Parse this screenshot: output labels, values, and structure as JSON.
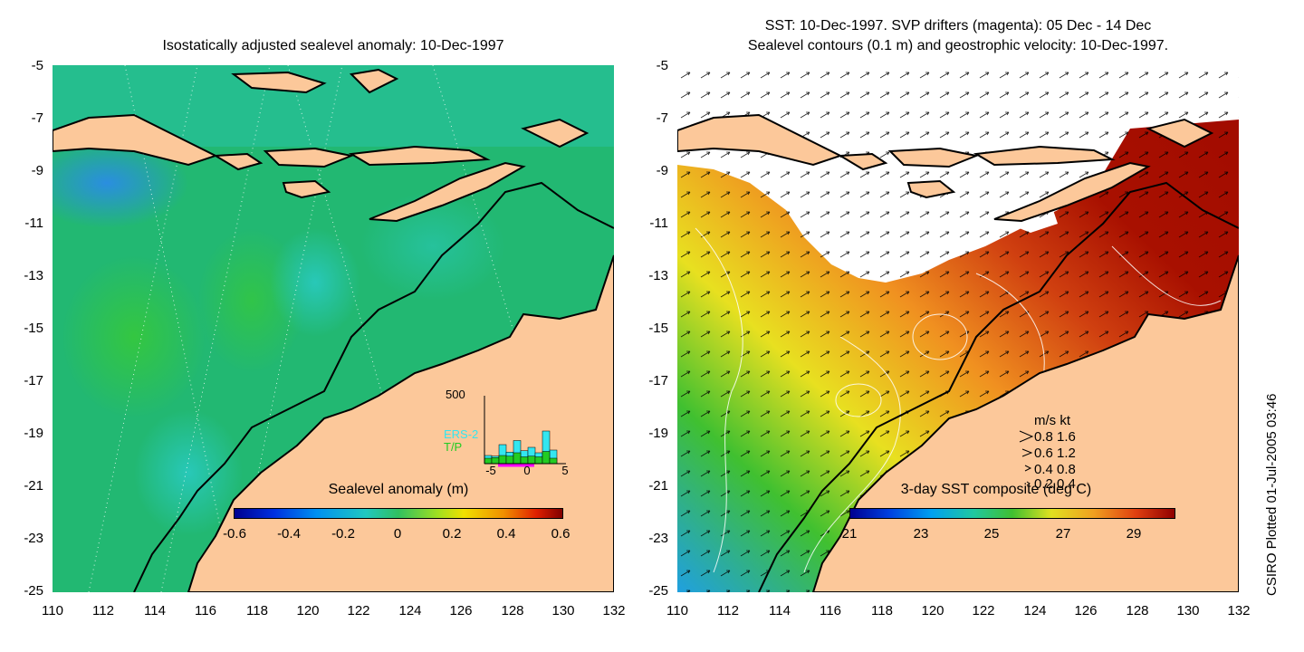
{
  "left_panel": {
    "title": "Isostatically adjusted sealevel anomaly: 10-Dec-1997",
    "colorbar": {
      "label": "Sealevel anomaly (m)",
      "ticks": [
        "-0.6",
        "-0.4",
        "-0.2",
        "0",
        "0.2",
        "0.4",
        "0.6"
      ],
      "range": [
        -0.6,
        0.6
      ]
    },
    "inset_histogram": {
      "ymax_label": "500",
      "series": [
        "ERS-2",
        "T/P"
      ],
      "series_colors": [
        "#33e6f0",
        "#22cc22"
      ],
      "x_ticks": [
        "-5",
        "0",
        "5"
      ],
      "ers2_values": [
        60,
        55,
        140,
        85,
        170,
        95,
        120,
        80,
        240,
        100
      ],
      "tp_values": [
        40,
        45,
        60,
        55,
        80,
        50,
        55,
        50,
        90,
        40
      ]
    }
  },
  "right_panel": {
    "title_line1": "SST: 10-Dec-1997. SVP drifters (magenta): 05 Dec - 14 Dec",
    "title_line2": "Sealevel contours (0.1 m) and geostrophic velocity: 10-Dec-1997.",
    "colorbar": {
      "label": "3-day SST composite (deg C)",
      "ticks": [
        "21",
        "23",
        "25",
        "27",
        "29"
      ],
      "range": [
        21,
        30
      ]
    },
    "velocity_legend": {
      "header": "m/s  kt",
      "rows": [
        "0.8  1.6",
        "0.6  1.2",
        "0.4  0.8",
        "0.2  0.4"
      ]
    }
  },
  "axes": {
    "x_ticks": [
      "110",
      "112",
      "114",
      "116",
      "118",
      "120",
      "122",
      "124",
      "126",
      "128",
      "130",
      "132"
    ],
    "y_ticks": [
      "-5",
      "-7",
      "-9",
      "-11",
      "-13",
      "-15",
      "-17",
      "-19",
      "-21",
      "-23",
      "-25"
    ],
    "lon_range": [
      110,
      132
    ],
    "lat_range": [
      -25,
      -5
    ]
  },
  "colors": {
    "land": "#fcc89a",
    "ocean_sla": "#20b870",
    "sst_hot": "#a81000",
    "sst_warm": "#e07018",
    "sst_cool": "#40c030",
    "cloud": "#ffffff"
  },
  "footer": {
    "credit": "CSIRO Plotted 01-Jul-2005 03:46"
  }
}
